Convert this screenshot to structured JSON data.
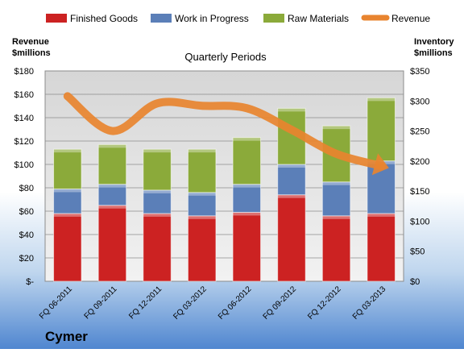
{
  "chart_data": {
    "type": "bar",
    "subtitle": "Quarterly Periods",
    "company": "Cymer",
    "left_axis_label": [
      "Revenue",
      "$millions"
    ],
    "right_axis_label": [
      "Inventory",
      "$millions"
    ],
    "categories": [
      "FQ 06-2011",
      "FQ 09-2011",
      "FQ 12-2011",
      "FQ 03-2012",
      "FQ 06-2012",
      "FQ 09-2012",
      "FQ 12-2012",
      "FQ 03-2013"
    ],
    "left_ticks": [
      "$-",
      "$20",
      "$40",
      "$60",
      "$80",
      "$100",
      "$120",
      "$140",
      "$160",
      "$180"
    ],
    "right_ticks": [
      "$0",
      "$50",
      "$100",
      "$150",
      "$200",
      "$250",
      "$300",
      "$350"
    ],
    "left_ylim": [
      0,
      180
    ],
    "right_ylim": [
      0,
      350
    ],
    "stack_series": [
      {
        "name": "Finished Goods",
        "color": "#CC2222",
        "values": [
          58,
          65,
          58,
          56,
          59,
          74,
          56,
          58
        ]
      },
      {
        "name": "Work in Progress",
        "color": "#5B7FB8",
        "values": [
          21,
          18,
          20,
          20,
          24,
          26,
          29,
          45
        ]
      },
      {
        "name": "Raw Materials",
        "color": "#8BAA3A",
        "values": [
          34,
          34,
          35,
          37,
          40,
          48,
          48,
          54
        ]
      }
    ],
    "line_series": {
      "name": "Revenue",
      "color": "#E8842F",
      "values": [
        308,
        250,
        296,
        292,
        288,
        252,
        212,
        192
      ]
    },
    "legend_position": "top",
    "grid": true
  }
}
